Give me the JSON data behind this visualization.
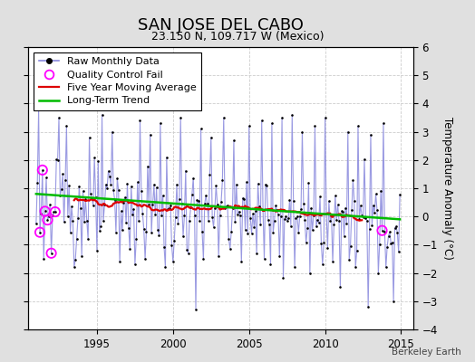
{
  "title": "SAN JOSE DEL CABO",
  "subtitle": "23.150 N, 109.717 W (Mexico)",
  "ylabel": "Temperature Anomaly (°C)",
  "watermark": "Berkeley Earth",
  "xlim": [
    1990.5,
    2015.8
  ],
  "ylim": [
    -4,
    6
  ],
  "yticks": [
    -4,
    -3,
    -2,
    -1,
    0,
    1,
    2,
    3,
    4,
    5,
    6
  ],
  "xticks": [
    1995,
    2000,
    2005,
    2010,
    2015
  ],
  "raw_color": "#3333bb",
  "raw_line_color": "#8888dd",
  "ma_color": "#dd0000",
  "trend_color": "#00bb00",
  "qc_color": "#ff00ff",
  "bg_color": "#e0e0e0",
  "plot_bg": "#ffffff",
  "grid_color": "#cccccc",
  "title_fontsize": 13,
  "subtitle_fontsize": 9,
  "tick_fontsize": 8.5,
  "ylabel_fontsize": 8.5,
  "legend_fontsize": 8,
  "watermark_fontsize": 7.5
}
